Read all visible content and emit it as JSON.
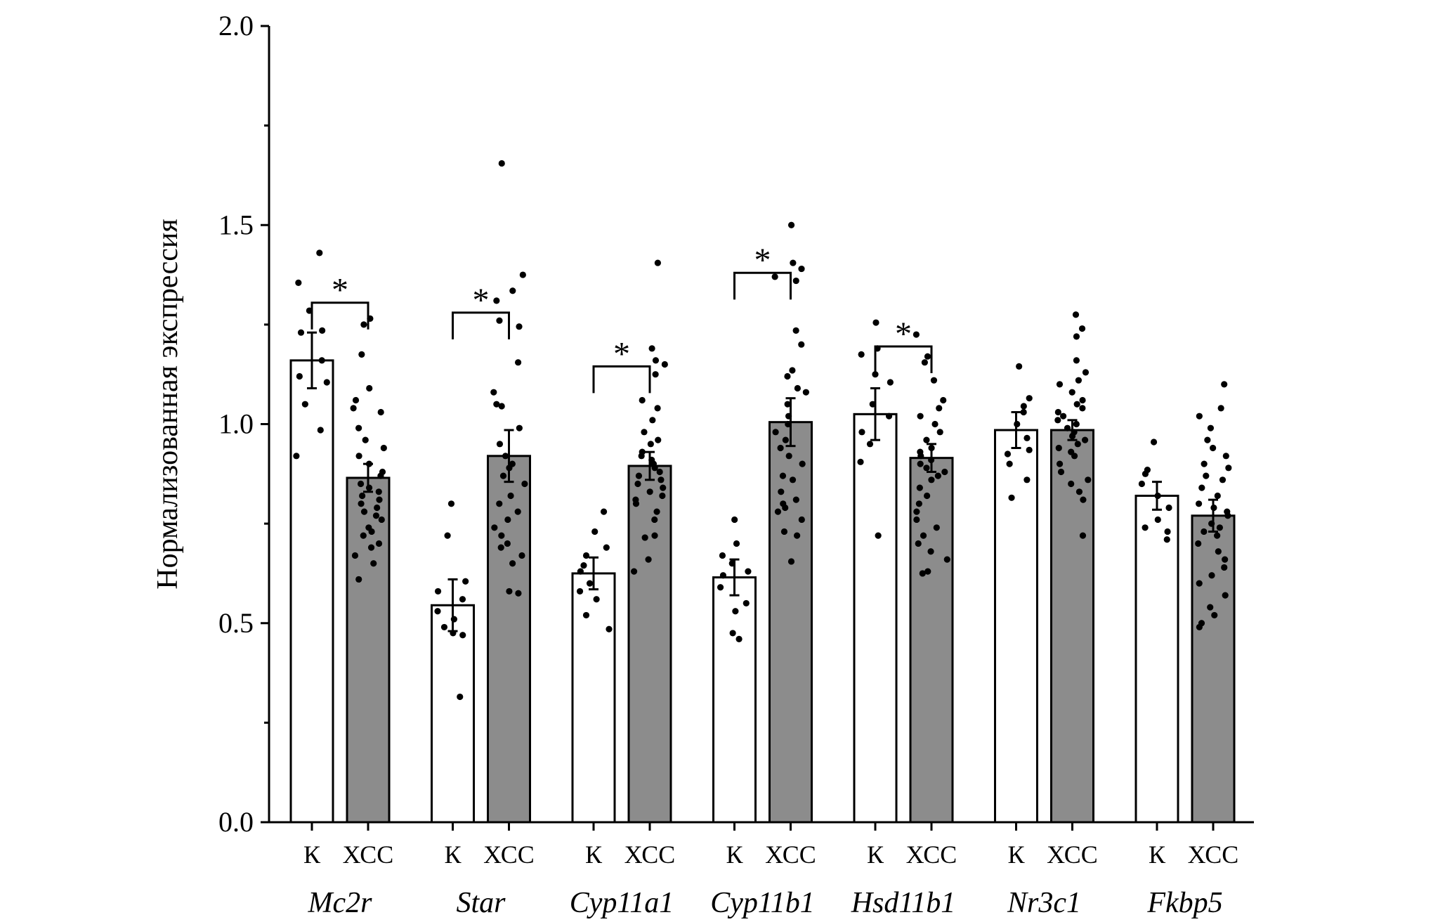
{
  "chart_data": {
    "type": "bar",
    "ylabel": "Нормализованная экспрессия",
    "ylim": [
      0,
      2.0
    ],
    "yticks": [
      "0.0",
      "0.5",
      "1.0",
      "1.5",
      "2.0"
    ],
    "ytick_values": [
      0,
      0.5,
      1.0,
      1.5,
      2.0
    ],
    "grid": false,
    "series_labels": [
      "К",
      "ХСС"
    ],
    "colors": {
      "control": "#ffffff",
      "stress": "#8c8c8c",
      "stroke": "#000000"
    },
    "significance_marker": "*",
    "genes": [
      {
        "name": "Mc2r",
        "control": {
          "mean": 1.16,
          "err": 0.07,
          "points": [
            1.43,
            1.355,
            1.285,
            1.235,
            1.23,
            1.16,
            1.12,
            1.105,
            1.05,
            0.985,
            0.92
          ]
        },
        "stress": {
          "mean": 0.865,
          "err": 0.035,
          "points": [
            1.265,
            1.25,
            1.175,
            1.09,
            1.06,
            1.04,
            1.03,
            0.99,
            0.96,
            0.94,
            0.92,
            0.9,
            0.88,
            0.87,
            0.85,
            0.84,
            0.83,
            0.82,
            0.81,
            0.8,
            0.79,
            0.78,
            0.77,
            0.76,
            0.74,
            0.73,
            0.72,
            0.7,
            0.69,
            0.67,
            0.65,
            0.61
          ]
        },
        "significant": true
      },
      {
        "name": "Star",
        "control": {
          "mean": 0.545,
          "err": 0.065,
          "points": [
            0.8,
            0.72,
            0.605,
            0.58,
            0.56,
            0.53,
            0.51,
            0.49,
            0.475,
            0.47,
            0.315
          ]
        },
        "stress": {
          "mean": 0.92,
          "err": 0.065,
          "points": [
            1.655,
            1.375,
            1.335,
            1.31,
            1.26,
            1.245,
            1.155,
            1.08,
            1.05,
            1.045,
            0.99,
            0.95,
            0.92,
            0.9,
            0.89,
            0.87,
            0.85,
            0.82,
            0.8,
            0.78,
            0.76,
            0.74,
            0.72,
            0.7,
            0.69,
            0.67,
            0.65,
            0.58,
            0.575
          ]
        },
        "significant": true
      },
      {
        "name": "Cyp11a1",
        "control": {
          "mean": 0.625,
          "err": 0.04,
          "points": [
            0.78,
            0.73,
            0.69,
            0.67,
            0.645,
            0.63,
            0.6,
            0.58,
            0.56,
            0.52,
            0.485
          ]
        },
        "stress": {
          "mean": 0.895,
          "err": 0.035,
          "points": [
            1.405,
            1.19,
            1.16,
            1.15,
            1.125,
            1.06,
            1.04,
            1.01,
            0.98,
            0.96,
            0.95,
            0.93,
            0.92,
            0.91,
            0.9,
            0.89,
            0.88,
            0.87,
            0.86,
            0.85,
            0.84,
            0.83,
            0.82,
            0.81,
            0.8,
            0.78,
            0.76,
            0.72,
            0.715,
            0.66,
            0.63
          ]
        },
        "significant": true
      },
      {
        "name": "Cyp11b1",
        "control": {
          "mean": 0.615,
          "err": 0.045,
          "points": [
            0.76,
            0.7,
            0.67,
            0.65,
            0.63,
            0.62,
            0.59,
            0.55,
            0.53,
            0.475,
            0.46
          ]
        },
        "stress": {
          "mean": 1.005,
          "err": 0.06,
          "points": [
            1.5,
            1.405,
            1.39,
            1.37,
            1.36,
            1.235,
            1.2,
            1.135,
            1.12,
            1.09,
            1.08,
            1.05,
            1.02,
            1.0,
            0.98,
            0.96,
            0.94,
            0.92,
            0.9,
            0.87,
            0.86,
            0.83,
            0.81,
            0.8,
            0.79,
            0.78,
            0.76,
            0.73,
            0.72,
            0.655
          ]
        },
        "significant": true
      },
      {
        "name": "Hsd11b1",
        "control": {
          "mean": 1.025,
          "err": 0.065,
          "points": [
            1.255,
            1.19,
            1.175,
            1.125,
            1.105,
            1.05,
            1.02,
            0.98,
            0.95,
            0.905,
            0.72
          ]
        },
        "stress": {
          "mean": 0.915,
          "err": 0.035,
          "points": [
            1.225,
            1.17,
            1.155,
            1.11,
            1.06,
            1.04,
            1.02,
            1.0,
            0.98,
            0.96,
            0.94,
            0.93,
            0.92,
            0.91,
            0.9,
            0.89,
            0.88,
            0.87,
            0.86,
            0.84,
            0.82,
            0.8,
            0.78,
            0.76,
            0.74,
            0.72,
            0.7,
            0.68,
            0.66,
            0.63,
            0.625
          ]
        },
        "significant": true
      },
      {
        "name": "Nr3c1",
        "control": {
          "mean": 0.985,
          "err": 0.045,
          "points": [
            1.145,
            1.065,
            1.045,
            1.03,
            1.0,
            0.965,
            0.935,
            0.925,
            0.9,
            0.86,
            0.815
          ]
        },
        "stress": {
          "mean": 0.985,
          "err": 0.025,
          "points": [
            1.275,
            1.24,
            1.22,
            1.16,
            1.13,
            1.11,
            1.1,
            1.08,
            1.06,
            1.05,
            1.04,
            1.03,
            1.02,
            1.01,
            1.0,
            0.99,
            0.98,
            0.97,
            0.96,
            0.95,
            0.94,
            0.93,
            0.92,
            0.9,
            0.88,
            0.86,
            0.85,
            0.83,
            0.81,
            0.72
          ]
        },
        "significant": false
      },
      {
        "name": "Fkbp5",
        "control": {
          "mean": 0.82,
          "err": 0.035,
          "points": [
            0.955,
            0.885,
            0.875,
            0.85,
            0.82,
            0.79,
            0.76,
            0.74,
            0.73,
            0.71
          ]
        },
        "stress": {
          "mean": 0.77,
          "err": 0.04,
          "points": [
            1.1,
            1.04,
            1.02,
            0.99,
            0.96,
            0.94,
            0.92,
            0.9,
            0.89,
            0.87,
            0.86,
            0.84,
            0.82,
            0.8,
            0.79,
            0.78,
            0.77,
            0.75,
            0.74,
            0.73,
            0.72,
            0.7,
            0.68,
            0.66,
            0.64,
            0.62,
            0.6,
            0.57,
            0.54,
            0.52,
            0.5,
            0.49
          ]
        },
        "significant": false
      }
    ]
  }
}
